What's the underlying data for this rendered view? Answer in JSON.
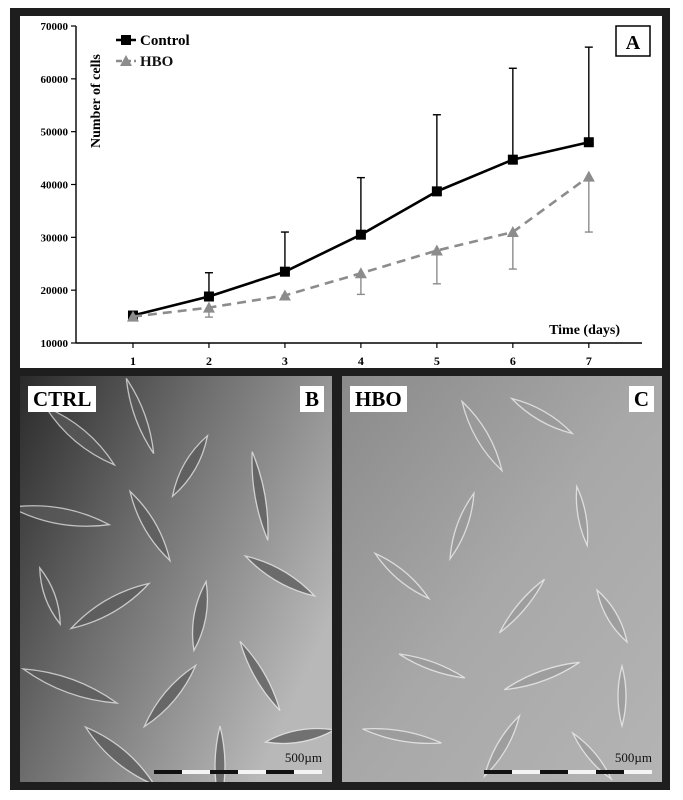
{
  "chart_data": {
    "type": "line",
    "panel_label": "A",
    "xlabel": "Time (days)",
    "ylabel": "Number of cells",
    "x": [
      1,
      2,
      3,
      4,
      5,
      6,
      7
    ],
    "xticks": [
      "1",
      "2",
      "3",
      "4",
      "5",
      "6",
      "7"
    ],
    "ylim": [
      10000,
      70000
    ],
    "yticks": [
      "10000",
      "20000",
      "30000",
      "40000",
      "50000",
      "60000",
      "70000"
    ],
    "legend_position": "top-left",
    "grid": false,
    "series": [
      {
        "name": "Control",
        "values": [
          15200,
          18800,
          23500,
          30500,
          38700,
          44700,
          48000
        ],
        "error": [
          0,
          4500,
          7500,
          10800,
          14500,
          17300,
          18000
        ],
        "error_direction": "up",
        "color": "#000000",
        "marker": "square",
        "line_style": "solid"
      },
      {
        "name": "HBO",
        "values": [
          15000,
          16700,
          19000,
          23200,
          27500,
          31000,
          41500
        ],
        "error": [
          0,
          1800,
          0,
          4000,
          6300,
          7000,
          10500
        ],
        "error_direction": "down",
        "color": "#8c8c8c",
        "marker": "triangle",
        "line_style": "dashed"
      }
    ]
  },
  "photos": {
    "left": {
      "title": "CTRL",
      "panel_label": "B",
      "scale_label": "500µm"
    },
    "right": {
      "title": "HBO",
      "panel_label": "C",
      "scale_label": "500µm"
    }
  }
}
